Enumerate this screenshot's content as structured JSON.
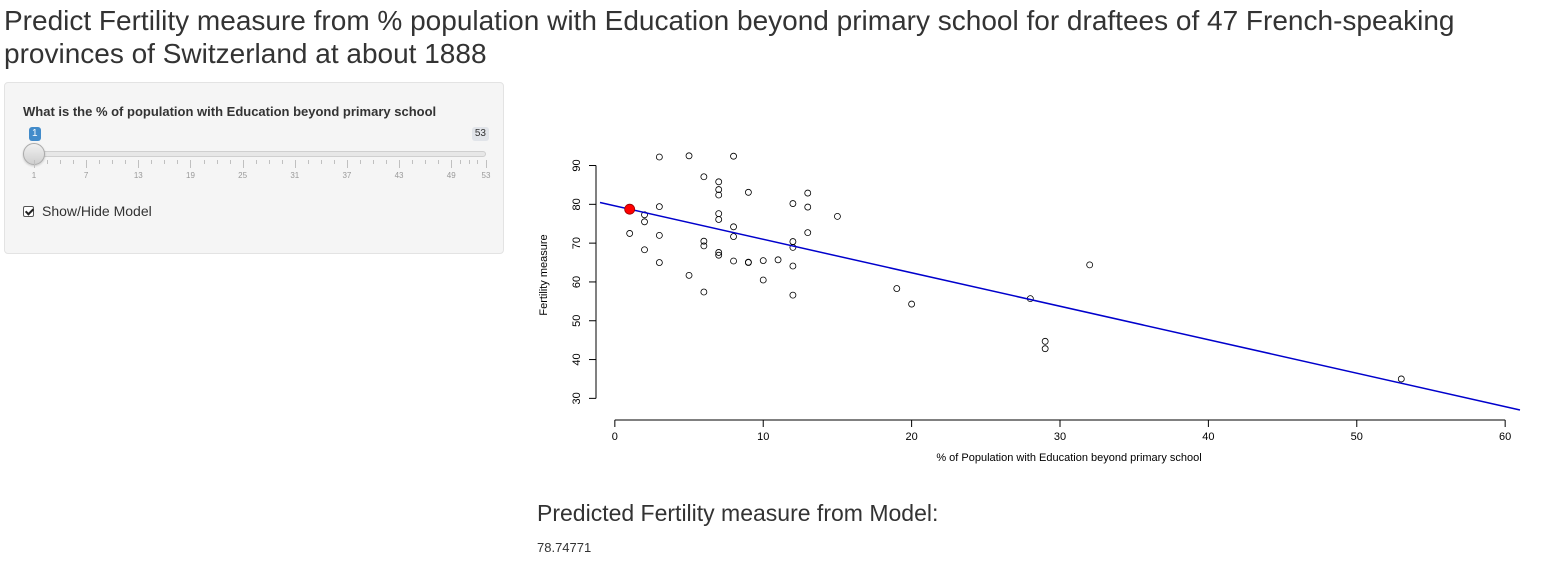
{
  "page": {
    "title": "Predict Fertility measure from % population with Education beyond primary school for draftees of 47 French-speaking provinces of Switzerland at about 1888"
  },
  "sidebar": {
    "slider": {
      "label": "What is the % of population with Education beyond primary school",
      "value": "1",
      "min": "1",
      "max": "53",
      "value_fraction": 0.0,
      "tick_labels": [
        "1",
        "7",
        "13",
        "19",
        "25",
        "31",
        "37",
        "43",
        "49",
        "53"
      ]
    },
    "checkbox": {
      "label": "Show/Hide Model",
      "checked": true
    }
  },
  "colors": {
    "accent": "#428bca",
    "model_line": "#0000cc",
    "prediction_point": "#ff0000"
  },
  "prediction": {
    "heading": "Predicted Fertility measure from Model:",
    "value": "78.74771"
  },
  "chart_data": {
    "type": "scatter",
    "xlabel": "% of Population with Education beyond primary school",
    "ylabel": "Fertility measure",
    "xlim": [
      -1,
      61
    ],
    "ylim": [
      27,
      94
    ],
    "x_ticks": [
      0,
      10,
      20,
      30,
      40,
      50,
      60
    ],
    "y_ticks": [
      30,
      40,
      50,
      60,
      70,
      80,
      90
    ],
    "x_tick_labels": [
      "0",
      "10",
      "20",
      "30",
      "40",
      "50",
      "60"
    ],
    "y_tick_labels": [
      "30",
      "40",
      "50",
      "60",
      "70",
      "80",
      "90"
    ],
    "points": [
      {
        "x": 12,
        "y": 80.2
      },
      {
        "x": 9,
        "y": 83.1
      },
      {
        "x": 5,
        "y": 92.5
      },
      {
        "x": 7,
        "y": 85.8
      },
      {
        "x": 15,
        "y": 76.9
      },
      {
        "x": 7,
        "y": 76.1
      },
      {
        "x": 7,
        "y": 83.8
      },
      {
        "x": 8,
        "y": 92.4
      },
      {
        "x": 7,
        "y": 82.4
      },
      {
        "x": 13,
        "y": 82.9
      },
      {
        "x": 6,
        "y": 87.1
      },
      {
        "x": 12,
        "y": 64.1
      },
      {
        "x": 7,
        "y": 66.9
      },
      {
        "x": 12,
        "y": 68.9
      },
      {
        "x": 5,
        "y": 61.7
      },
      {
        "x": 2,
        "y": 68.3
      },
      {
        "x": 8,
        "y": 71.7
      },
      {
        "x": 28,
        "y": 55.7
      },
      {
        "x": 20,
        "y": 54.3
      },
      {
        "x": 9,
        "y": 65.1
      },
      {
        "x": 10,
        "y": 65.5
      },
      {
        "x": 3,
        "y": 65.0
      },
      {
        "x": 12,
        "y": 56.6
      },
      {
        "x": 6,
        "y": 57.4
      },
      {
        "x": 1,
        "y": 72.5
      },
      {
        "x": 8,
        "y": 74.2
      },
      {
        "x": 3,
        "y": 72.0
      },
      {
        "x": 10,
        "y": 60.5
      },
      {
        "x": 19,
        "y": 58.3
      },
      {
        "x": 8,
        "y": 65.4
      },
      {
        "x": 2,
        "y": 75.5
      },
      {
        "x": 6,
        "y": 69.3
      },
      {
        "x": 2,
        "y": 77.3
      },
      {
        "x": 6,
        "y": 70.5
      },
      {
        "x": 3,
        "y": 79.4
      },
      {
        "x": 9,
        "y": 65.0
      },
      {
        "x": 3,
        "y": 92.2
      },
      {
        "x": 13,
        "y": 79.3
      },
      {
        "x": 12,
        "y": 70.4
      },
      {
        "x": 11,
        "y": 65.7
      },
      {
        "x": 13,
        "y": 72.7
      },
      {
        "x": 7,
        "y": 67.6
      },
      {
        "x": 29,
        "y": 44.7
      },
      {
        "x": 29,
        "y": 42.8
      },
      {
        "x": 7,
        "y": 77.6
      },
      {
        "x": 32,
        "y": 64.4
      },
      {
        "x": 53,
        "y": 35.0
      }
    ],
    "model_line": {
      "intercept": 79.6101,
      "slope": -0.8624
    },
    "prediction_point": {
      "x": 1,
      "y": 78.74771
    }
  }
}
